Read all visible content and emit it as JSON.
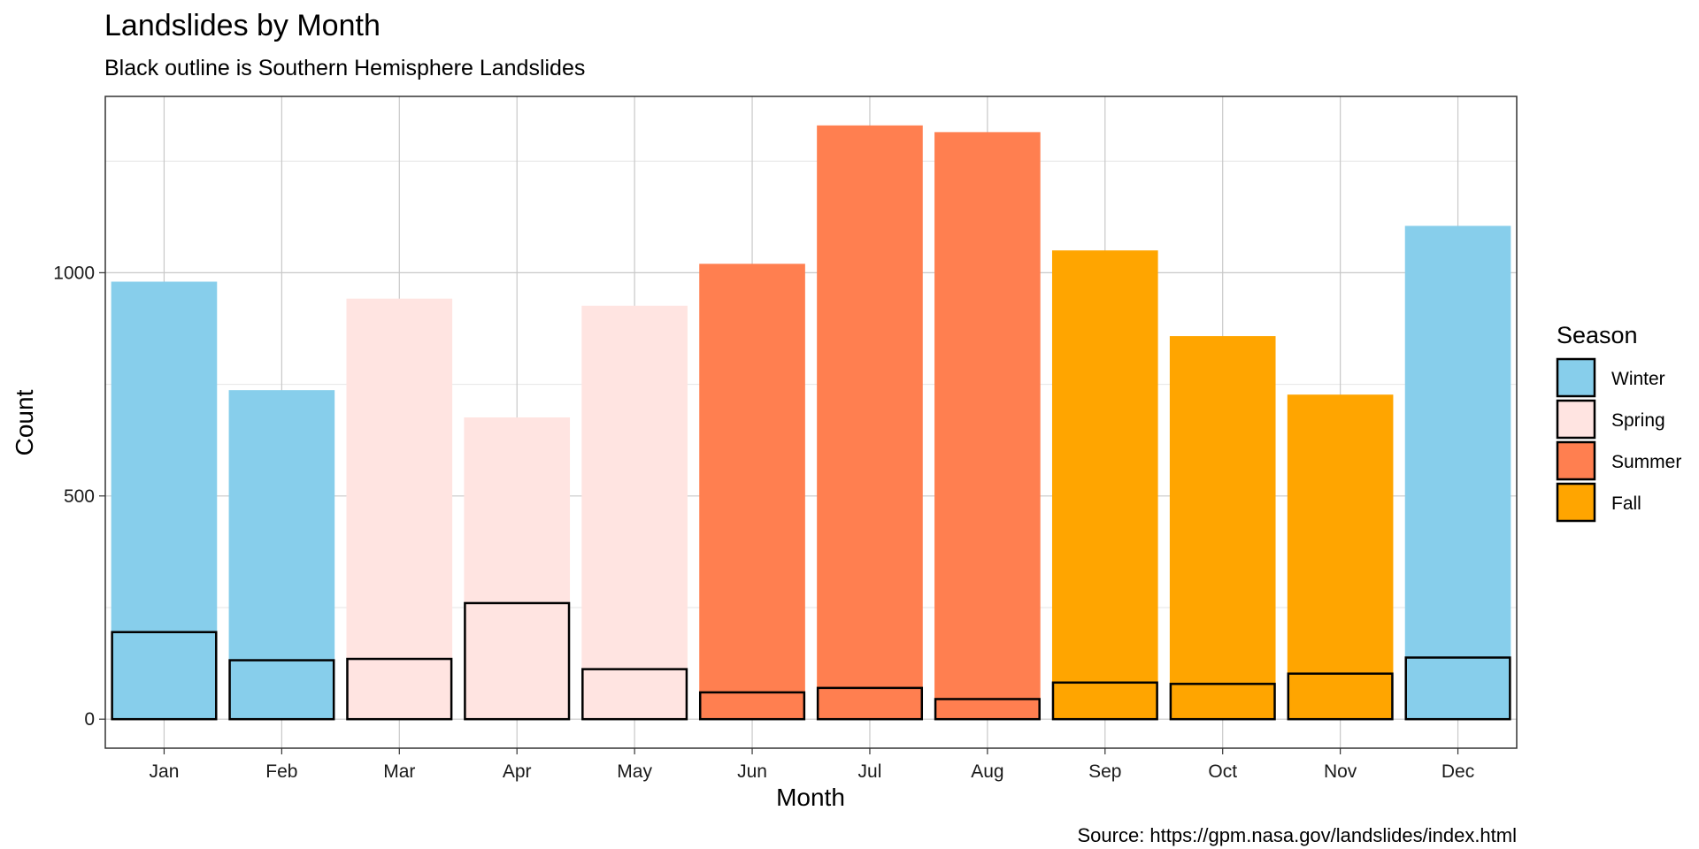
{
  "chart_data": {
    "type": "bar",
    "title": "Landslides by Month",
    "subtitle": "Black outline is Southern Hemisphere Landslides",
    "xlabel": "Month",
    "ylabel": "Count",
    "caption": "Source: https://gpm.nasa.gov/landslides/index.html",
    "categories": [
      "Jan",
      "Feb",
      "Mar",
      "Apr",
      "May",
      "Jun",
      "Jul",
      "Aug",
      "Sep",
      "Oct",
      "Nov",
      "Dec"
    ],
    "season": [
      "Winter",
      "Winter",
      "Spring",
      "Spring",
      "Spring",
      "Summer",
      "Summer",
      "Summer",
      "Fall",
      "Fall",
      "Fall",
      "Winter"
    ],
    "series": [
      {
        "values": [
          980,
          737,
          942,
          676,
          926,
          1020,
          1330,
          1315,
          1050,
          858,
          727,
          1105
        ]
      },
      {
        "values": [
          195,
          132,
          135,
          260,
          112,
          60,
          70,
          45,
          82,
          79,
          102,
          138
        ]
      }
    ],
    "yticks": [
      0,
      500,
      1000
    ],
    "ylim": [
      -65,
      1395
    ],
    "grid": true,
    "legend": {
      "title": "Season",
      "position": "right",
      "items": [
        {
          "label": "Winter",
          "color": "#87CEEB"
        },
        {
          "label": "Spring",
          "color": "#FFE4E1"
        },
        {
          "label": "Summer",
          "color": "#FF7F50"
        },
        {
          "label": "Fall",
          "color": "#FFA500"
        }
      ]
    },
    "outline_color": "#000000"
  }
}
